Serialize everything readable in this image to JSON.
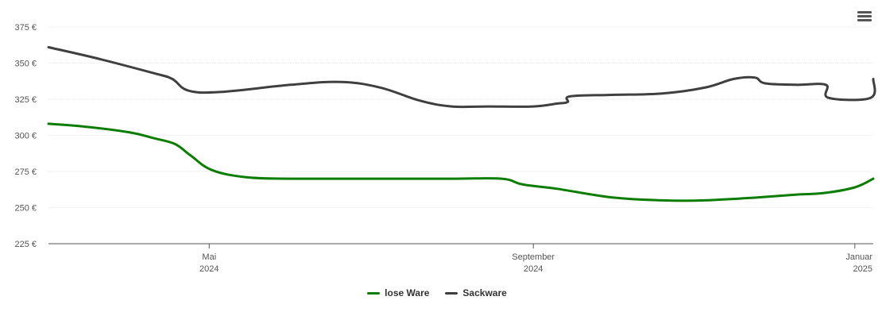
{
  "chart_data": {
    "type": "line",
    "y_ticks": [
      "225 €",
      "250 €",
      "275 €",
      "300 €",
      "325 €",
      "350 €",
      "375 €"
    ],
    "ylim": [
      225,
      375
    ],
    "x_ticks": [
      {
        "date": "2024-05-01",
        "month": "Mai",
        "year": "2024"
      },
      {
        "date": "2024-09-01",
        "month": "September",
        "year": "2024"
      },
      {
        "date": "2025-01-01",
        "month": "Januar",
        "year": "2025"
      }
    ],
    "xlim": [
      "2024-03-01",
      "2025-01-08"
    ],
    "grid": true,
    "legend_position": "bottom-center",
    "series": [
      {
        "name": "lose Ware",
        "color": "#0a7d00",
        "points": [
          [
            "2024-03-01",
            308
          ],
          [
            "2024-03-15",
            306
          ],
          [
            "2024-04-01",
            302
          ],
          [
            "2024-04-10",
            298
          ],
          [
            "2024-04-18",
            294
          ],
          [
            "2024-04-24",
            286
          ],
          [
            "2024-05-02",
            276
          ],
          [
            "2024-05-15",
            271
          ],
          [
            "2024-06-01",
            270
          ],
          [
            "2024-07-01",
            270
          ],
          [
            "2024-08-01",
            270
          ],
          [
            "2024-08-20",
            270
          ],
          [
            "2024-08-28",
            266
          ],
          [
            "2024-09-10",
            263
          ],
          [
            "2024-10-01",
            257
          ],
          [
            "2024-10-20",
            255
          ],
          [
            "2024-11-05",
            255
          ],
          [
            "2024-11-25",
            257
          ],
          [
            "2024-12-10",
            259
          ],
          [
            "2024-12-20",
            260
          ],
          [
            "2025-01-01",
            264
          ],
          [
            "2025-01-08",
            270
          ]
        ]
      },
      {
        "name": "Sackware",
        "color": "#3f3f3f",
        "points": [
          [
            "2024-03-01",
            361
          ],
          [
            "2024-03-20",
            353
          ],
          [
            "2024-04-10",
            343
          ],
          [
            "2024-04-17",
            339
          ],
          [
            "2024-04-23",
            331
          ],
          [
            "2024-05-05",
            330
          ],
          [
            "2024-06-01",
            335
          ],
          [
            "2024-06-20",
            337
          ],
          [
            "2024-07-05",
            333
          ],
          [
            "2024-07-20",
            324
          ],
          [
            "2024-08-01",
            320
          ],
          [
            "2024-08-15",
            320
          ],
          [
            "2024-09-01",
            320
          ],
          [
            "2024-09-10",
            322
          ],
          [
            "2024-09-14",
            323
          ],
          [
            "2024-09-15",
            327
          ],
          [
            "2024-10-01",
            328
          ],
          [
            "2024-10-20",
            329
          ],
          [
            "2024-11-05",
            333
          ],
          [
            "2024-11-16",
            339
          ],
          [
            "2024-11-24",
            340
          ],
          [
            "2024-11-28",
            336
          ],
          [
            "2024-12-10",
            335
          ],
          [
            "2024-12-21",
            335
          ],
          [
            "2024-12-22",
            326
          ],
          [
            "2025-01-07",
            326
          ],
          [
            "2025-01-08",
            339
          ]
        ]
      }
    ]
  },
  "legend": [
    {
      "label": "lose Ware",
      "color": "#0a7d00"
    },
    {
      "label": "Sackware",
      "color": "#3f3f3f"
    }
  ],
  "menu": {
    "icon": "hamburger-menu-icon"
  }
}
